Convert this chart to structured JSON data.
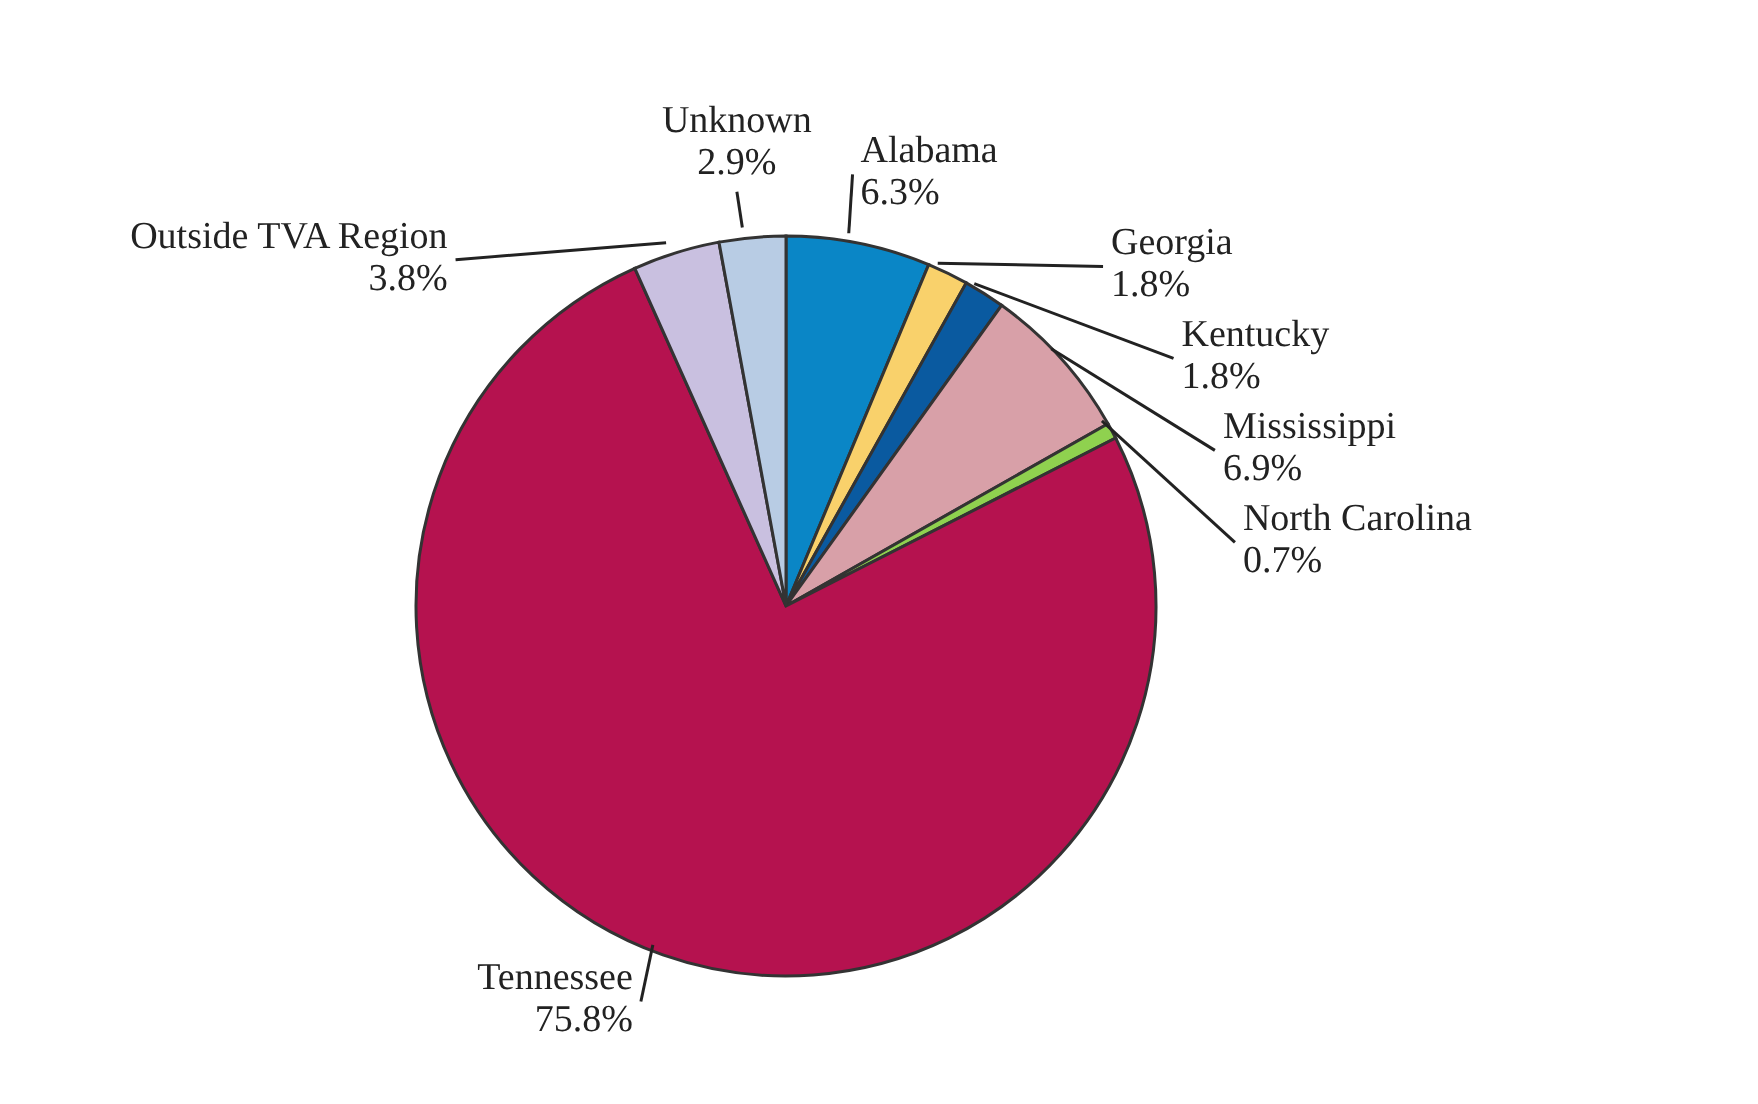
{
  "chart_data": {
    "type": "pie",
    "categories": [
      "Alabama",
      "Georgia",
      "Kentucky",
      "Mississippi",
      "North Carolina",
      "Tennessee",
      "Outside TVA Region",
      "Unknown"
    ],
    "values": [
      6.3,
      1.8,
      1.8,
      6.9,
      0.7,
      75.8,
      3.8,
      2.9
    ],
    "value_labels": [
      "6.3%",
      "1.8%",
      "1.8%",
      "6.9%",
      "0.7%",
      "75.8%",
      "3.8%",
      "2.9%"
    ],
    "colors": [
      "#0a86c6",
      "#f9d16b",
      "#0a5aa0",
      "#d8a0a8",
      "#8fd14f",
      "#b5124f",
      "#c9c0e0",
      "#b8cce4"
    ],
    "legend": false
  }
}
